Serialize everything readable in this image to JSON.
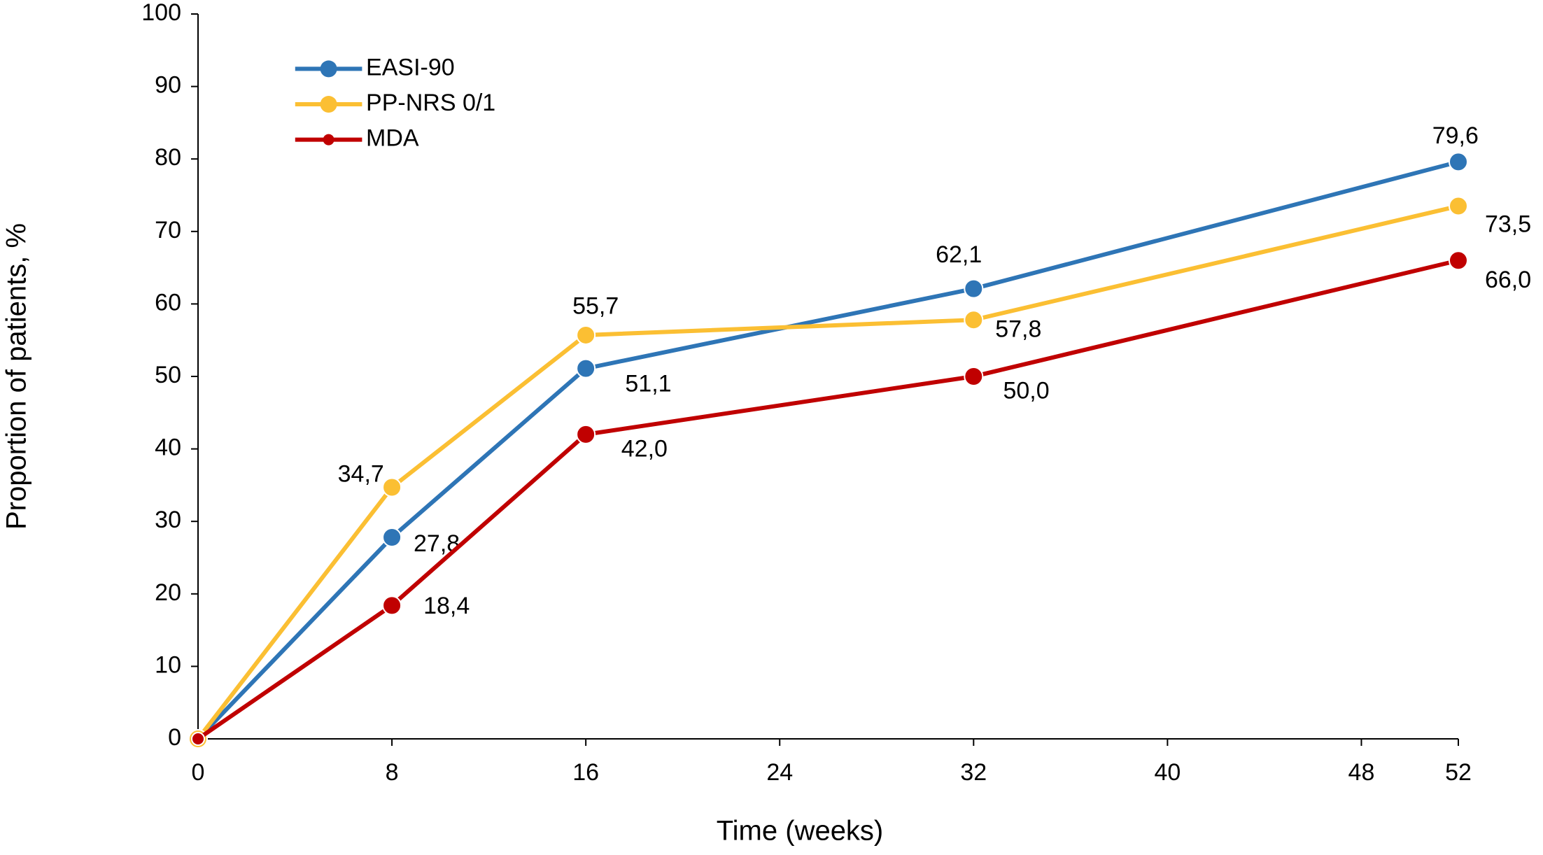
{
  "chart_data": {
    "type": "line",
    "x": [
      0,
      8,
      16,
      32,
      52
    ],
    "xlabel": "Time (weeks)",
    "ylabel": "Proportion of patients, %",
    "xlim": [
      0,
      52
    ],
    "xticks": [
      0,
      8,
      16,
      24,
      32,
      40,
      48,
      52
    ],
    "ylim": [
      0,
      100
    ],
    "yticks": [
      0,
      10,
      20,
      30,
      40,
      50,
      60,
      70,
      80,
      90,
      100
    ],
    "legend": "top-left",
    "series": [
      {
        "name": "EASI-90",
        "color": "#2e75b6",
        "values": [
          0,
          27.8,
          51.1,
          62.1,
          79.6
        ],
        "value_labels": [
          null,
          "27,8",
          "51,1",
          "62,1",
          "79,6"
        ]
      },
      {
        "name": "PP-NRS 0/1",
        "color": "#fbbf33",
        "values": [
          0,
          34.7,
          55.7,
          57.8,
          73.5
        ],
        "value_labels": [
          null,
          "34,7",
          "55,7",
          "57,8",
          "73,5"
        ]
      },
      {
        "name": "MDA",
        "color": "#c00000",
        "values": [
          0,
          18.4,
          42.0,
          50.0,
          66.0
        ],
        "value_labels": [
          null,
          "18,4",
          "42,0",
          "50,0",
          "66,0"
        ]
      }
    ]
  }
}
